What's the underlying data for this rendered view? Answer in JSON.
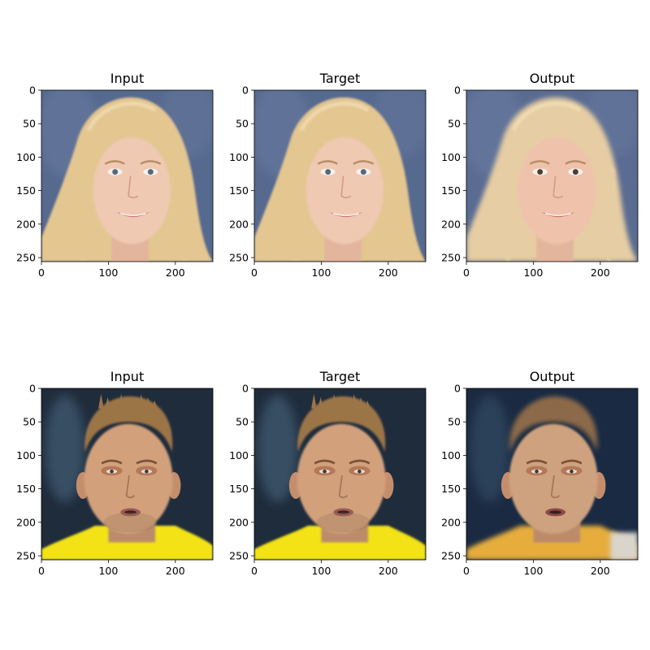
{
  "chart_data": [
    {
      "type": "image",
      "title": "Input",
      "image": "female-face-blonde",
      "xlim": [
        0,
        256
      ],
      "ylim": [
        256,
        0
      ],
      "xticks": [
        "0",
        "100",
        "200"
      ],
      "yticks": [
        "0",
        "50",
        "100",
        "150",
        "200",
        "250"
      ],
      "palette": {
        "bg": "#56698f",
        "hair": "#e3c690",
        "skin": "#efc9b2",
        "lips": "#c9777a"
      }
    },
    {
      "type": "image",
      "title": "Target",
      "image": "female-face-blonde",
      "xlim": [
        0,
        256
      ],
      "ylim": [
        256,
        0
      ],
      "xticks": [
        "0",
        "100",
        "200"
      ],
      "yticks": [
        "0",
        "50",
        "100",
        "150",
        "200",
        "250"
      ],
      "palette": {
        "bg": "#56698f",
        "hair": "#e3c690",
        "skin": "#efc9b2",
        "lips": "#c9777a"
      }
    },
    {
      "type": "image",
      "title": "Output",
      "image": "female-face-blonde-reconstructed",
      "xlim": [
        0,
        256
      ],
      "ylim": [
        256,
        0
      ],
      "xticks": [
        "0",
        "100",
        "200"
      ],
      "yticks": [
        "0",
        "50",
        "100",
        "150",
        "200",
        "250"
      ],
      "palette": {
        "bg": "#5a6c92",
        "hair": "#e6cda3",
        "skin": "#efc2ab",
        "lips": "#cd7071"
      }
    },
    {
      "type": "image",
      "title": "Input",
      "image": "male-face-yellow-shirt",
      "xlim": [
        0,
        256
      ],
      "ylim": [
        256,
        0
      ],
      "xticks": [
        "0",
        "100",
        "200"
      ],
      "yticks": [
        "0",
        "50",
        "100",
        "150",
        "200",
        "250"
      ],
      "palette": {
        "bg": "#1f2c3c",
        "hair": "#9c7546",
        "skin": "#d2a17c",
        "lips": "#9e5a55",
        "shirt": "#f2e213"
      }
    },
    {
      "type": "image",
      "title": "Target",
      "image": "male-face-yellow-shirt",
      "xlim": [
        0,
        256
      ],
      "ylim": [
        256,
        0
      ],
      "xticks": [
        "0",
        "100",
        "200"
      ],
      "yticks": [
        "0",
        "50",
        "100",
        "150",
        "200",
        "250"
      ],
      "palette": {
        "bg": "#1f2c3c",
        "hair": "#9c7546",
        "skin": "#d2a17c",
        "lips": "#9e5a55",
        "shirt": "#f2e213"
      }
    },
    {
      "type": "image",
      "title": "Output",
      "image": "male-face-reconstructed",
      "xlim": [
        0,
        256
      ],
      "ylim": [
        256,
        0
      ],
      "xticks": [
        "0",
        "100",
        "200"
      ],
      "yticks": [
        "0",
        "50",
        "100",
        "150",
        "200",
        "250"
      ],
      "palette": {
        "bg": "#1a2a42",
        "hair": "#8c6a48",
        "skin": "#cfa27f",
        "lips": "#8e4a48",
        "shirt": "#e6ad3c"
      }
    }
  ]
}
